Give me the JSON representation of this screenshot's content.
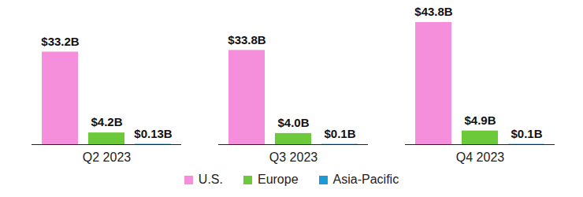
{
  "chart_data": {
    "type": "bar",
    "categories": [
      "Q2 2023",
      "Q3 2023",
      "Q4 2023"
    ],
    "series": [
      {
        "name": "U.S.",
        "color": "#f68fdb",
        "values": [
          33.2,
          33.8,
          43.8
        ],
        "value_labels": [
          "$33.2B",
          "$33.8B",
          "$43.8B"
        ]
      },
      {
        "name": "Europe",
        "color": "#6cc93a",
        "values": [
          4.2,
          4.0,
          4.9
        ],
        "value_labels": [
          "$4.2B",
          "$4.0B",
          "$4.9B"
        ]
      },
      {
        "name": "Asia-Pacific",
        "color": "#1a9ad6",
        "values": [
          0.13,
          0.1,
          0.1
        ],
        "value_labels": [
          "$0.13B",
          "$0.1B",
          "$0.1B"
        ]
      }
    ],
    "ylim": [
      0,
      43.8
    ],
    "data_labels": true,
    "tick_labels": "x",
    "legend": "bottom"
  }
}
